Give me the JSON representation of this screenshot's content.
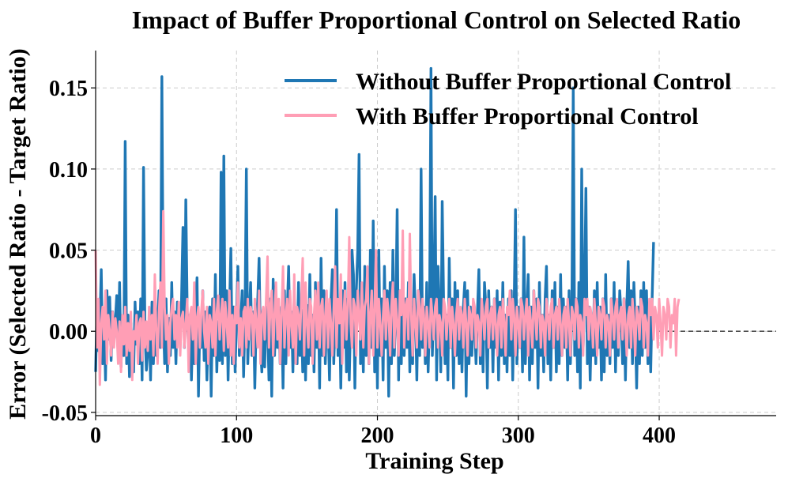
{
  "chart_data": {
    "type": "line",
    "title": "Impact of Buffer Proportional Control on Selected Ratio",
    "xlabel": "Training Step",
    "ylabel": "Error (Selected Ratio - Target Ratio)",
    "xlim": [
      0,
      483
    ],
    "ylim": [
      -0.052,
      0.173
    ],
    "x_ticks": [
      0,
      100,
      200,
      300,
      400
    ],
    "x_tick_labels": [
      "0",
      "100",
      "200",
      "300",
      "400"
    ],
    "y_ticks": [
      -0.05,
      0.0,
      0.05,
      0.1,
      0.15
    ],
    "y_tick_labels": [
      "-0.05",
      "0.00",
      "0.05",
      "0.10",
      "0.15"
    ],
    "grid": true,
    "reference_line": {
      "y": 0.0,
      "style": "dashed",
      "color": "#333333"
    },
    "legend": {
      "placement": "top-right"
    },
    "series": [
      {
        "name": "Without Buffer Proportional Control",
        "color": "#1f77b4",
        "x_start": 0,
        "x_step": 1,
        "values": [
          -0.025,
          0.018,
          -0.012,
          0.004,
          0.038,
          -0.02,
          0.01,
          -0.03,
          0.025,
          -0.005,
          0.021,
          -0.018,
          0.012,
          -0.006,
          0.007,
          0.022,
          -0.01,
          0.03,
          -0.022,
          0.008,
          -0.015,
          0.117,
          -0.02,
          0.01,
          -0.028,
          0.005,
          -0.012,
          -0.025,
          0.018,
          -0.008,
          0.012,
          -0.02,
          0.02,
          -0.03,
          0.101,
          0.0,
          -0.024,
          -0.012,
          0.006,
          -0.03,
          0.018,
          -0.02,
          0.012,
          -0.015,
          0.005,
          0.025,
          -0.01,
          0.157,
          0.01,
          -0.02,
          0.02,
          -0.025,
          0.008,
          -0.015,
          0.03,
          -0.01,
          0.012,
          -0.02,
          0.018,
          0.0,
          -0.005,
          0.02,
          0.064,
          -0.01,
          0.081,
          0.012,
          -0.012,
          0.01,
          -0.03,
          0.005,
          -0.02,
          0.015,
          0.033,
          -0.04,
          0.008,
          -0.01,
          0.025,
          -0.018,
          0.012,
          -0.03,
          0.003,
          0.015,
          -0.04,
          0.02,
          -0.015,
          0.035,
          -0.025,
          0.006,
          -0.018,
          0.098,
          -0.02,
          0.108,
          -0.015,
          0.025,
          -0.03,
          0.012,
          0.051,
          -0.02,
          0.015,
          -0.025,
          0.01,
          0.04,
          -0.015,
          0.005,
          0.025,
          -0.028,
          0.011,
          0.1,
          -0.02,
          0.008,
          0.03,
          -0.015,
          0.012,
          -0.035,
          0.008,
          0.018,
          0.045,
          -0.01,
          -0.025,
          0.013,
          -0.022,
          0.015,
          0.005,
          -0.03,
          0.02,
          -0.04,
          0.032,
          -0.015,
          0.021,
          -0.01,
          0.01,
          -0.02,
          0.015,
          -0.035,
          0.025,
          -0.02,
          0.012,
          0.04,
          -0.01,
          0.012,
          -0.025,
          0.02,
          0.005,
          -0.02,
          0.03,
          -0.015,
          0.013,
          -0.025,
          0.02,
          -0.03,
          0.016,
          -0.02,
          0.035,
          -0.015,
          0.01,
          -0.025,
          0.03,
          -0.01,
          0.02,
          -0.035,
          0.045,
          -0.015,
          0.025,
          -0.02,
          0.012,
          0.005,
          -0.03,
          0.018,
          0.038,
          -0.02,
          0.01,
          0.075,
          -0.015,
          0.02,
          -0.035,
          0.025,
          -0.01,
          0.03,
          -0.025,
          0.02,
          -0.03,
          0.01,
          0.05,
          0.035,
          -0.035,
          0.025,
          0.05,
          0.109,
          -0.02,
          0.01,
          -0.025,
          0.04,
          -0.015,
          0.03,
          -0.02,
          0.05,
          -0.01,
          0.068,
          -0.025,
          0.03,
          -0.035,
          0.05,
          -0.015,
          0.02,
          -0.03,
          0.04,
          -0.01,
          0.025,
          -0.04,
          0.03,
          -0.02,
          0.05,
          -0.015,
          0.01,
          0.075,
          -0.03,
          0.025,
          -0.02,
          0.04,
          -0.015,
          0.02,
          -0.01,
          0.03,
          -0.025,
          0.015,
          -0.02,
          0.035,
          0.01,
          -0.03,
          0.025,
          -0.015,
          0.1,
          -0.01,
          0.015,
          -0.02,
          0.03,
          -0.025,
          0.01,
          0.162,
          -0.015,
          0.02,
          0.083,
          -0.03,
          0.04,
          0.012,
          -0.025,
          0.08,
          0.018,
          -0.02,
          0.01,
          -0.03,
          0.045,
          -0.01,
          0.02,
          -0.035,
          0.03,
          -0.015,
          0.025,
          -0.02,
          0.01,
          -0.025,
          0.015,
          0.03,
          -0.04,
          0.025,
          -0.02,
          0.015,
          -0.015,
          0.01,
          0.005,
          -0.02,
          0.012,
          0.038,
          -0.02,
          0.01,
          -0.025,
          0.03,
          0.015,
          -0.035,
          0.025,
          -0.01,
          0.015,
          -0.025,
          0.02,
          -0.01,
          0.025,
          -0.03,
          0.018,
          -0.015,
          0.03,
          -0.02,
          0.01,
          -0.025,
          0.02,
          -0.015,
          0.025,
          -0.03,
          0.012,
          0.075,
          -0.02,
          0.015,
          -0.01,
          0.02,
          -0.025,
          0.058,
          -0.02,
          0.012,
          0.035,
          -0.03,
          0.015,
          -0.02,
          0.025,
          -0.01,
          0.02,
          -0.035,
          0.03,
          -0.015,
          0.01,
          -0.025,
          0.02,
          0.04,
          -0.02,
          0.01,
          -0.03,
          0.025,
          -0.01,
          0.03,
          -0.025,
          0.015,
          -0.02,
          0.035,
          -0.015,
          0.02,
          -0.01,
          0.015,
          -0.03,
          0.025,
          -0.02,
          0.01,
          0.15,
          -0.015,
          0.02,
          -0.025,
          0.03,
          -0.035,
          0.1,
          -0.01,
          0.02,
          0.088,
          -0.02,
          0.015,
          -0.03,
          0.01,
          -0.015,
          0.025,
          -0.02,
          0.03,
          -0.01,
          0.015,
          -0.03,
          0.02,
          -0.025,
          0.035,
          -0.015,
          0.01,
          -0.02,
          0.02,
          -0.01,
          0.03,
          -0.025,
          0.018,
          -0.015,
          0.025,
          0.01,
          -0.02,
          0.02,
          -0.03,
          0.015,
          0.043,
          -0.01,
          0.025,
          -0.02,
          0.03,
          0.005,
          -0.035,
          0.015,
          -0.02,
          0.025,
          -0.015,
          0.03,
          -0.01,
          0.025,
          -0.02,
          0.015,
          -0.025,
          0.02,
          0.055
        ]
      },
      {
        "name": "With Buffer Proportional Control",
        "color": "#ff9eb5",
        "x_start": 0,
        "x_step": 1,
        "values": [
          0.05,
          -0.01,
          0.02,
          -0.033,
          0.005,
          0.015,
          -0.005,
          0.025,
          -0.02,
          0.01,
          0.0,
          -0.015,
          0.012,
          -0.01,
          0.008,
          0.0,
          -0.02,
          0.006,
          -0.025,
          0.01,
          -0.008,
          0.015,
          -0.015,
          0.005,
          -0.012,
          0.012,
          -0.03,
          0.0,
          -0.005,
          0.01,
          -0.02,
          0.005,
          0.008,
          -0.018,
          0.012,
          -0.01,
          0.006,
          -0.012,
          0.015,
          -0.005,
          0.01,
          -0.015,
          0.035,
          0.0,
          -0.02,
          0.012,
          0.03,
          -0.01,
          0.074,
          0.015,
          -0.005,
          0.01,
          -0.02,
          0.005,
          0.015,
          0.02,
          -0.005,
          0.01,
          -0.01,
          0.018,
          -0.015,
          0.008,
          0.012,
          -0.01,
          0.005,
          0.02,
          -0.025,
          0.01,
          0.015,
          -0.005,
          0.03,
          -0.02,
          0.008,
          0.015,
          -0.01,
          0.012,
          0.025,
          0.0,
          -0.01,
          0.015,
          -0.02,
          0.01,
          0.005,
          -0.01,
          0.02,
          -0.015,
          0.012,
          0.022,
          -0.005,
          0.01,
          0.02,
          -0.012,
          0.018,
          0.005,
          -0.01,
          0.025,
          -0.015,
          0.01,
          -0.02,
          0.015,
          0.005,
          0.03,
          -0.01,
          0.008,
          -0.015,
          0.012,
          0.015,
          -0.01,
          0.02,
          -0.005,
          0.015,
          0.01,
          -0.015,
          0.02,
          0.005,
          -0.01,
          0.025,
          -0.02,
          0.01,
          0.015,
          -0.005,
          0.02,
          0.046,
          -0.01,
          0.015,
          0.025,
          -0.015,
          0.01,
          0.03,
          -0.005,
          0.02,
          -0.02,
          0.012,
          0.04,
          -0.01,
          0.01,
          0.02,
          -0.015,
          0.025,
          0.005,
          -0.01,
          0.035,
          -0.02,
          0.015,
          0.01,
          -0.005,
          0.02,
          0.045,
          -0.015,
          0.03,
          0.005,
          -0.01,
          0.02,
          0.015,
          -0.02,
          0.01,
          0.025,
          -0.005,
          0.03,
          -0.01,
          0.015,
          0.02,
          -0.015,
          0.01,
          0.025,
          -0.01,
          0.02,
          0.005,
          -0.015,
          0.015,
          0.04,
          -0.01,
          0.02,
          0.005,
          0.035,
          -0.02,
          0.01,
          0.025,
          -0.005,
          0.015,
          0.058,
          0.005,
          -0.01,
          0.02,
          0.015,
          -0.015,
          0.025,
          0.01,
          -0.005,
          0.03,
          -0.01,
          0.015,
          0.02,
          0.04,
          -0.02,
          0.01,
          0.025,
          -0.015,
          0.015,
          0.05,
          -0.01,
          0.02,
          0.005,
          -0.015,
          0.01,
          0.025,
          -0.005,
          0.02,
          0.01,
          -0.015,
          0.015,
          0.03,
          -0.01,
          0.02,
          0.005,
          -0.015,
          0.025,
          0.01,
          0.062,
          -0.01,
          0.015,
          0.02,
          -0.005,
          0.06,
          0.01,
          -0.015,
          0.02,
          0.005,
          -0.01,
          0.025,
          0.015,
          -0.005,
          0.02,
          0.01,
          -0.015,
          0.015,
          0.005,
          -0.01,
          0.02,
          0.01,
          -0.005,
          0.015,
          0.02,
          -0.01,
          0.01,
          0.005,
          -0.015,
          0.02,
          0.015,
          -0.005,
          0.01,
          0.02,
          -0.01,
          0.015,
          0.005,
          -0.015,
          0.01,
          0.02,
          -0.005,
          0.015,
          0.01,
          -0.01,
          0.02,
          0.005,
          -0.015,
          0.015,
          0.01,
          -0.005,
          0.02,
          0.015,
          -0.01,
          0.01,
          0.005,
          -0.015,
          0.02,
          0.01,
          -0.005,
          0.015,
          0.02,
          -0.01,
          0.01,
          0.015,
          -0.005,
          0.02,
          0.005,
          -0.015,
          0.01,
          0.015,
          -0.01,
          0.02,
          0.005,
          -0.015,
          0.015,
          0.01,
          0.025,
          -0.005,
          0.02,
          0.01,
          -0.015,
          0.015,
          0.005,
          -0.01,
          0.02,
          0.015,
          -0.005,
          0.01,
          0.02,
          -0.015,
          0.015,
          0.005,
          -0.01,
          0.025,
          0.01,
          -0.005,
          0.02,
          0.015,
          -0.01,
          0.01,
          0.005,
          -0.015,
          0.02,
          0.01,
          -0.005,
          0.015,
          0.02,
          -0.01,
          0.01,
          0.015,
          -0.005,
          0.02,
          0.005,
          -0.015,
          0.01,
          0.015,
          -0.01,
          0.02,
          0.005,
          -0.015,
          0.015,
          0.01,
          -0.005,
          0.02,
          0.015,
          -0.01,
          0.01,
          0.005,
          -0.015,
          0.02,
          0.01,
          0.02,
          -0.005,
          0.015,
          0.01,
          -0.01,
          0.02,
          0.005,
          -0.015,
          0.015,
          0.01,
          -0.005,
          0.02,
          0.015,
          -0.01,
          0.01,
          0.005,
          -0.015,
          0.02,
          0.01,
          -0.005,
          0.015,
          0.02,
          -0.01,
          0.01,
          0.015,
          -0.005,
          0.02,
          0.005,
          -0.015,
          0.01,
          0.015,
          -0.01,
          0.02,
          0.005,
          -0.015,
          0.015,
          0.01,
          -0.005,
          0.02,
          0.015,
          -0.01,
          0.01,
          0.005,
          -0.015,
          0.02,
          0.01,
          0.02,
          -0.005,
          0.015,
          0.01,
          -0.01,
          0.02,
          0.005,
          -0.015,
          0.015,
          0.01,
          -0.005,
          0.02,
          0.015,
          -0.01,
          0.01,
          0.005,
          0.02,
          -0.015,
          0.015,
          0.02
        ]
      }
    ]
  }
}
